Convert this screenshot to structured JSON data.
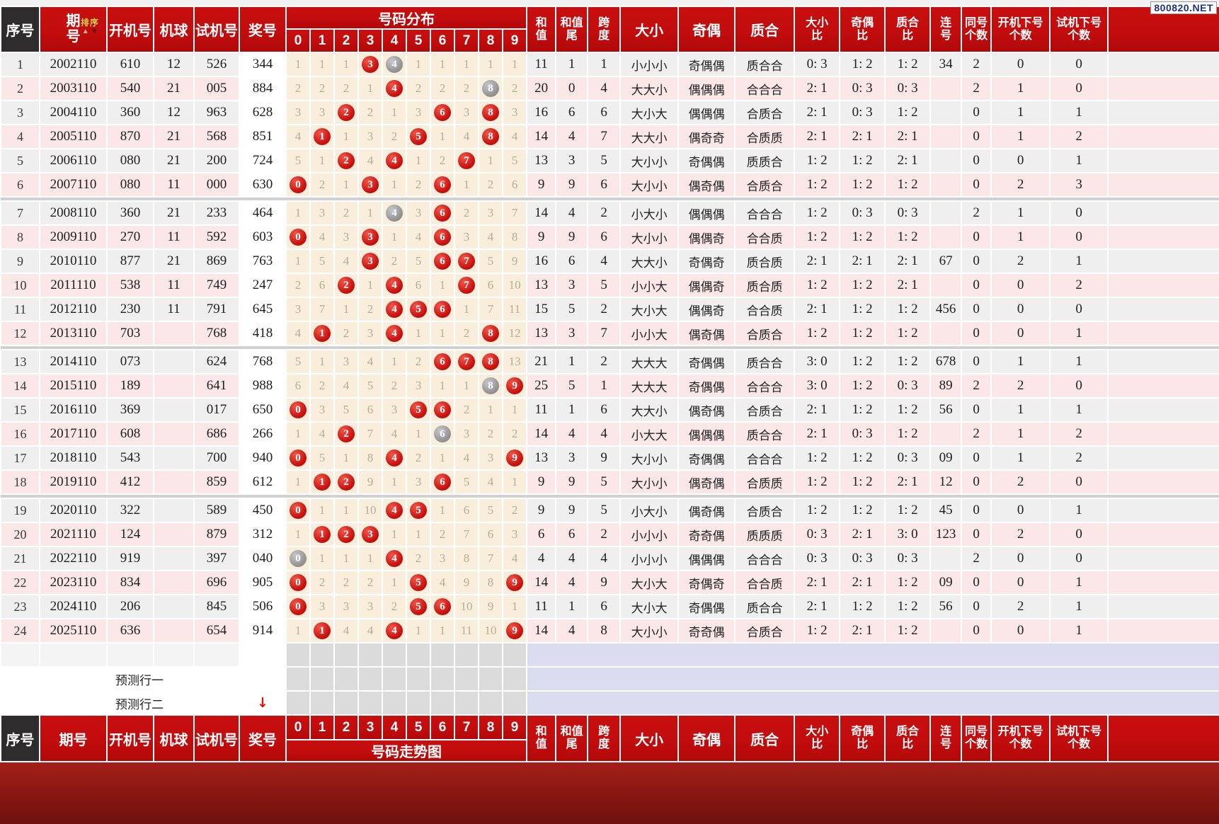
{
  "badge": "800820.NET",
  "columns": {
    "seq": "序号",
    "period": "期号",
    "period_stacked": "期号",
    "sort": "排序",
    "sort_up": "▲",
    "sort_down": "▼",
    "kaiji": "开机号",
    "jiqiu": "机球",
    "shiji": "试机号",
    "prize": "奖号",
    "dist_title": "号码分布",
    "trend_title": "号码走势图",
    "digits": [
      "0",
      "1",
      "2",
      "3",
      "4",
      "5",
      "6",
      "7",
      "8",
      "9"
    ],
    "sum": "和\n值",
    "sum_tail": "和值\n尾",
    "span": "跨\n度",
    "dx": "大小",
    "jo": "奇偶",
    "zh": "质合",
    "dx_ratio": "大小\n比",
    "jo_ratio": "奇偶\n比",
    "zh_ratio": "质合\n比",
    "lian": "连\n号",
    "tong": "同号\n个数",
    "kaix": "开机下号\n个数",
    "shix": "试机下号\n个数"
  },
  "pred_rows": [
    {
      "label": "预测行一",
      "arrow": ""
    },
    {
      "label": "预测行二",
      "arrow": "↓"
    }
  ],
  "colors": {
    "header_red": "#c20c0d",
    "seq_header_dark": "#2e2c2d",
    "row_gray": "#f0eff0",
    "row_pink": "#fbe7e8",
    "dist_cream": "#f8eedb",
    "ball_red": "#c70d0c",
    "ball_gray": "#8f8f8f",
    "miss_text": "#b7ad93",
    "lavender": "#dcdcf0",
    "blank_dist_gray": "#dcdbdb",
    "bottom_band": "#8c1612",
    "badge_text": "#1d3380",
    "sort_gold": "#fcd04a",
    "arrow_red": "#e51000"
  },
  "rows": [
    {
      "seq": "1",
      "period": "2002110",
      "kaiji": "610",
      "jiqiu": "12",
      "shiji": "526",
      "prize": "344",
      "dist": [
        "1",
        "1",
        "1",
        "R3",
        "G4",
        "1",
        "1",
        "1",
        "1",
        "1"
      ],
      "sum": "11",
      "tail": "1",
      "span": "1",
      "dx": "小小小",
      "jo": "奇偶偶",
      "zh": "质合合",
      "dxr": "0: 3",
      "jor": "1: 2",
      "zhr": "1: 2",
      "lian": "34",
      "tong": "2",
      "kaix": "0",
      "shix": "0"
    },
    {
      "seq": "2",
      "period": "2003110",
      "kaiji": "540",
      "jiqiu": "21",
      "shiji": "005",
      "prize": "884",
      "dist": [
        "2",
        "2",
        "2",
        "1",
        "R4",
        "2",
        "2",
        "2",
        "G8",
        "2"
      ],
      "sum": "20",
      "tail": "0",
      "span": "4",
      "dx": "大大小",
      "jo": "偶偶偶",
      "zh": "合合合",
      "dxr": "2: 1",
      "jor": "0: 3",
      "zhr": "0: 3",
      "lian": "",
      "tong": "2",
      "kaix": "1",
      "shix": "0"
    },
    {
      "seq": "3",
      "period": "2004110",
      "kaiji": "360",
      "jiqiu": "12",
      "shiji": "963",
      "prize": "628",
      "dist": [
        "3",
        "3",
        "R2",
        "2",
        "1",
        "3",
        "R6",
        "3",
        "R8",
        "3"
      ],
      "sum": "16",
      "tail": "6",
      "span": "6",
      "dx": "大小大",
      "jo": "偶偶偶",
      "zh": "合质合",
      "dxr": "2: 1",
      "jor": "0: 3",
      "zhr": "1: 2",
      "lian": "",
      "tong": "0",
      "kaix": "1",
      "shix": "1"
    },
    {
      "seq": "4",
      "period": "2005110",
      "kaiji": "870",
      "jiqiu": "21",
      "shiji": "568",
      "prize": "851",
      "dist": [
        "4",
        "R1",
        "1",
        "3",
        "2",
        "R5",
        "1",
        "4",
        "R8",
        "4"
      ],
      "sum": "14",
      "tail": "4",
      "span": "7",
      "dx": "大大小",
      "jo": "偶奇奇",
      "zh": "合质质",
      "dxr": "2: 1",
      "jor": "2: 1",
      "zhr": "2: 1",
      "lian": "",
      "tong": "0",
      "kaix": "1",
      "shix": "2"
    },
    {
      "seq": "5",
      "period": "2006110",
      "kaiji": "080",
      "jiqiu": "21",
      "shiji": "200",
      "prize": "724",
      "dist": [
        "5",
        "1",
        "R2",
        "4",
        "R4",
        "1",
        "2",
        "R7",
        "1",
        "5"
      ],
      "sum": "13",
      "tail": "3",
      "span": "5",
      "dx": "大小小",
      "jo": "奇偶偶",
      "zh": "质质合",
      "dxr": "1: 2",
      "jor": "1: 2",
      "zhr": "2: 1",
      "lian": "",
      "tong": "0",
      "kaix": "0",
      "shix": "1"
    },
    {
      "seq": "6",
      "period": "2007110",
      "kaiji": "080",
      "jiqiu": "11",
      "shiji": "000",
      "prize": "630",
      "dist": [
        "R0",
        "2",
        "1",
        "R3",
        "1",
        "2",
        "R6",
        "1",
        "2",
        "6"
      ],
      "sum": "9",
      "tail": "9",
      "span": "6",
      "dx": "大小小",
      "jo": "偶奇偶",
      "zh": "合质合",
      "dxr": "1: 2",
      "jor": "1: 2",
      "zhr": "1: 2",
      "lian": "",
      "tong": "0",
      "kaix": "2",
      "shix": "3"
    },
    {
      "seq": "7",
      "period": "2008110",
      "kaiji": "360",
      "jiqiu": "21",
      "shiji": "233",
      "prize": "464",
      "dist": [
        "1",
        "3",
        "2",
        "1",
        "G4",
        "3",
        "R6",
        "2",
        "3",
        "7"
      ],
      "sum": "14",
      "tail": "4",
      "span": "2",
      "dx": "小大小",
      "jo": "偶偶偶",
      "zh": "合合合",
      "dxr": "1: 2",
      "jor": "0: 3",
      "zhr": "0: 3",
      "lian": "",
      "tong": "2",
      "kaix": "1",
      "shix": "0"
    },
    {
      "seq": "8",
      "period": "2009110",
      "kaiji": "270",
      "jiqiu": "11",
      "shiji": "592",
      "prize": "603",
      "dist": [
        "R0",
        "4",
        "3",
        "R3",
        "1",
        "4",
        "R6",
        "3",
        "4",
        "8"
      ],
      "sum": "9",
      "tail": "9",
      "span": "6",
      "dx": "大小小",
      "jo": "偶偶奇",
      "zh": "合合质",
      "dxr": "1: 2",
      "jor": "1: 2",
      "zhr": "1: 2",
      "lian": "",
      "tong": "0",
      "kaix": "1",
      "shix": "0"
    },
    {
      "seq": "9",
      "period": "2010110",
      "kaiji": "877",
      "jiqiu": "21",
      "shiji": "869",
      "prize": "763",
      "dist": [
        "1",
        "5",
        "4",
        "R3",
        "2",
        "5",
        "R6",
        "R7",
        "5",
        "9"
      ],
      "sum": "16",
      "tail": "6",
      "span": "4",
      "dx": "大大小",
      "jo": "奇偶奇",
      "zh": "质合质",
      "dxr": "2: 1",
      "jor": "2: 1",
      "zhr": "2: 1",
      "lian": "67",
      "tong": "0",
      "kaix": "2",
      "shix": "1"
    },
    {
      "seq": "10",
      "period": "2011110",
      "kaiji": "538",
      "jiqiu": "11",
      "shiji": "749",
      "prize": "247",
      "dist": [
        "2",
        "6",
        "R2",
        "1",
        "R4",
        "6",
        "1",
        "R7",
        "6",
        "10"
      ],
      "sum": "13",
      "tail": "3",
      "span": "5",
      "dx": "小小大",
      "jo": "偶偶奇",
      "zh": "质合质",
      "dxr": "1: 2",
      "jor": "1: 2",
      "zhr": "2: 1",
      "lian": "",
      "tong": "0",
      "kaix": "0",
      "shix": "2"
    },
    {
      "seq": "11",
      "period": "2012110",
      "kaiji": "230",
      "jiqiu": "11",
      "shiji": "791",
      "prize": "645",
      "dist": [
        "3",
        "7",
        "1",
        "2",
        "R4",
        "R5",
        "R6",
        "1",
        "7",
        "11"
      ],
      "sum": "15",
      "tail": "5",
      "span": "2",
      "dx": "大小大",
      "jo": "偶偶奇",
      "zh": "合合质",
      "dxr": "2: 1",
      "jor": "1: 2",
      "zhr": "1: 2",
      "lian": "456",
      "tong": "0",
      "kaix": "0",
      "shix": "0"
    },
    {
      "seq": "12",
      "period": "2013110",
      "kaiji": "703",
      "jiqiu": "",
      "shiji": "768",
      "prize": "418",
      "dist": [
        "4",
        "R1",
        "2",
        "3",
        "R4",
        "1",
        "1",
        "2",
        "R8",
        "12"
      ],
      "sum": "13",
      "tail": "3",
      "span": "7",
      "dx": "小小大",
      "jo": "偶奇偶",
      "zh": "合质合",
      "dxr": "1: 2",
      "jor": "1: 2",
      "zhr": "1: 2",
      "lian": "",
      "tong": "0",
      "kaix": "0",
      "shix": "1"
    },
    {
      "seq": "13",
      "period": "2014110",
      "kaiji": "073",
      "jiqiu": "",
      "shiji": "624",
      "prize": "768",
      "dist": [
        "5",
        "1",
        "3",
        "4",
        "1",
        "2",
        "R6",
        "R7",
        "R8",
        "13"
      ],
      "sum": "21",
      "tail": "1",
      "span": "2",
      "dx": "大大大",
      "jo": "奇偶偶",
      "zh": "质合合",
      "dxr": "3: 0",
      "jor": "1: 2",
      "zhr": "1: 2",
      "lian": "678",
      "tong": "0",
      "kaix": "1",
      "shix": "1"
    },
    {
      "seq": "14",
      "period": "2015110",
      "kaiji": "189",
      "jiqiu": "",
      "shiji": "641",
      "prize": "988",
      "dist": [
        "6",
        "2",
        "4",
        "5",
        "2",
        "3",
        "1",
        "1",
        "G8",
        "R9"
      ],
      "sum": "25",
      "tail": "5",
      "span": "1",
      "dx": "大大大",
      "jo": "奇偶偶",
      "zh": "合合合",
      "dxr": "3: 0",
      "jor": "1: 2",
      "zhr": "0: 3",
      "lian": "89",
      "tong": "2",
      "kaix": "2",
      "shix": "0"
    },
    {
      "seq": "15",
      "period": "2016110",
      "kaiji": "369",
      "jiqiu": "",
      "shiji": "017",
      "prize": "650",
      "dist": [
        "R0",
        "3",
        "5",
        "6",
        "3",
        "R5",
        "R6",
        "2",
        "1",
        "1"
      ],
      "sum": "11",
      "tail": "1",
      "span": "6",
      "dx": "大大小",
      "jo": "偶奇偶",
      "zh": "合质合",
      "dxr": "2: 1",
      "jor": "1: 2",
      "zhr": "1: 2",
      "lian": "56",
      "tong": "0",
      "kaix": "1",
      "shix": "1"
    },
    {
      "seq": "16",
      "period": "2017110",
      "kaiji": "608",
      "jiqiu": "",
      "shiji": "686",
      "prize": "266",
      "dist": [
        "1",
        "4",
        "R2",
        "7",
        "4",
        "1",
        "G6",
        "3",
        "2",
        "2"
      ],
      "sum": "14",
      "tail": "4",
      "span": "4",
      "dx": "小大大",
      "jo": "偶偶偶",
      "zh": "质合合",
      "dxr": "2: 1",
      "jor": "0: 3",
      "zhr": "1: 2",
      "lian": "",
      "tong": "2",
      "kaix": "1",
      "shix": "2"
    },
    {
      "seq": "17",
      "period": "2018110",
      "kaiji": "543",
      "jiqiu": "",
      "shiji": "700",
      "prize": "940",
      "dist": [
        "R0",
        "5",
        "1",
        "8",
        "R4",
        "2",
        "1",
        "4",
        "3",
        "R9"
      ],
      "sum": "13",
      "tail": "3",
      "span": "9",
      "dx": "大小小",
      "jo": "奇偶偶",
      "zh": "合合合",
      "dxr": "1: 2",
      "jor": "1: 2",
      "zhr": "0: 3",
      "lian": "09",
      "tong": "0",
      "kaix": "1",
      "shix": "2"
    },
    {
      "seq": "18",
      "period": "2019110",
      "kaiji": "412",
      "jiqiu": "",
      "shiji": "859",
      "prize": "612",
      "dist": [
        "1",
        "R1",
        "R2",
        "9",
        "1",
        "3",
        "R6",
        "5",
        "4",
        "1"
      ],
      "sum": "9",
      "tail": "9",
      "span": "5",
      "dx": "大小小",
      "jo": "偶奇偶",
      "zh": "合质质",
      "dxr": "1: 2",
      "jor": "1: 2",
      "zhr": "2: 1",
      "lian": "12",
      "tong": "0",
      "kaix": "2",
      "shix": "0"
    },
    {
      "seq": "19",
      "period": "2020110",
      "kaiji": "322",
      "jiqiu": "",
      "shiji": "589",
      "prize": "450",
      "dist": [
        "R0",
        "1",
        "1",
        "10",
        "R4",
        "R5",
        "1",
        "6",
        "5",
        "2"
      ],
      "sum": "9",
      "tail": "9",
      "span": "5",
      "dx": "小大小",
      "jo": "偶奇偶",
      "zh": "合质合",
      "dxr": "1: 2",
      "jor": "1: 2",
      "zhr": "1: 2",
      "lian": "45",
      "tong": "0",
      "kaix": "0",
      "shix": "1"
    },
    {
      "seq": "20",
      "period": "2021110",
      "kaiji": "124",
      "jiqiu": "",
      "shiji": "879",
      "prize": "312",
      "dist": [
        "1",
        "R1",
        "R2",
        "R3",
        "1",
        "1",
        "2",
        "7",
        "6",
        "3"
      ],
      "sum": "6",
      "tail": "6",
      "span": "2",
      "dx": "小小小",
      "jo": "奇奇偶",
      "zh": "质质质",
      "dxr": "0: 3",
      "jor": "2: 1",
      "zhr": "3: 0",
      "lian": "123",
      "tong": "0",
      "kaix": "2",
      "shix": "0"
    },
    {
      "seq": "21",
      "period": "2022110",
      "kaiji": "919",
      "jiqiu": "",
      "shiji": "397",
      "prize": "040",
      "dist": [
        "G0",
        "1",
        "1",
        "1",
        "R4",
        "2",
        "3",
        "8",
        "7",
        "4"
      ],
      "sum": "4",
      "tail": "4",
      "span": "4",
      "dx": "小小小",
      "jo": "偶偶偶",
      "zh": "合合合",
      "dxr": "0: 3",
      "jor": "0: 3",
      "zhr": "0: 3",
      "lian": "",
      "tong": "2",
      "kaix": "0",
      "shix": "0"
    },
    {
      "seq": "22",
      "period": "2023110",
      "kaiji": "834",
      "jiqiu": "",
      "shiji": "696",
      "prize": "905",
      "dist": [
        "R0",
        "2",
        "2",
        "2",
        "1",
        "R5",
        "4",
        "9",
        "8",
        "R9"
      ],
      "sum": "14",
      "tail": "4",
      "span": "9",
      "dx": "大小大",
      "jo": "奇偶奇",
      "zh": "合合质",
      "dxr": "2: 1",
      "jor": "2: 1",
      "zhr": "1: 2",
      "lian": "09",
      "tong": "0",
      "kaix": "0",
      "shix": "1"
    },
    {
      "seq": "23",
      "period": "2024110",
      "kaiji": "206",
      "jiqiu": "",
      "shiji": "845",
      "prize": "506",
      "dist": [
        "R0",
        "3",
        "3",
        "3",
        "2",
        "R5",
        "R6",
        "10",
        "9",
        "1"
      ],
      "sum": "11",
      "tail": "1",
      "span": "6",
      "dx": "大小大",
      "jo": "奇偶偶",
      "zh": "质合合",
      "dxr": "2: 1",
      "jor": "1: 2",
      "zhr": "1: 2",
      "lian": "56",
      "tong": "0",
      "kaix": "2",
      "shix": "1"
    },
    {
      "seq": "24",
      "period": "2025110",
      "kaiji": "636",
      "jiqiu": "",
      "shiji": "654",
      "prize": "914",
      "dist": [
        "1",
        "R1",
        "4",
        "4",
        "R4",
        "1",
        "1",
        "11",
        "10",
        "R9"
      ],
      "sum": "14",
      "tail": "4",
      "span": "8",
      "dx": "大小小",
      "jo": "奇奇偶",
      "zh": "合质合",
      "dxr": "1: 2",
      "jor": "2: 1",
      "zhr": "1: 2",
      "lian": "",
      "tong": "0",
      "kaix": "0",
      "shix": "1"
    }
  ]
}
